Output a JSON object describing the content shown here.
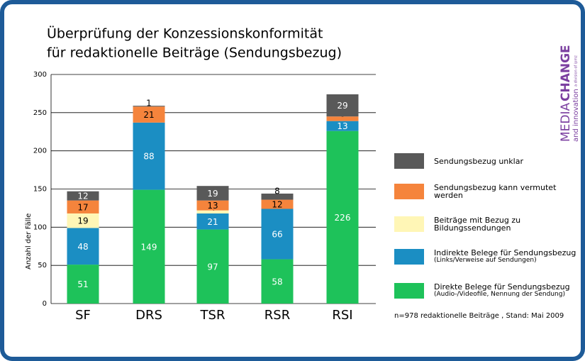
{
  "chart_data": {
    "type": "stacked_bar",
    "title": [
      "Überprüfung der Konzessionskonformität",
      "für redaktionelle Beiträge (Sendungsbezug)"
    ],
    "y_label": "Anzahl der Fälle",
    "categories": [
      "SF",
      "DRS",
      "TSR",
      "RSR",
      "RSI"
    ],
    "series": [
      {
        "name": "Direkte Belege für Sendungsbezug",
        "note": "(Audio-/Videofile, Nennung der Sendung)",
        "color": "#1ec25a",
        "values": [
          51,
          149,
          97,
          58,
          226
        ]
      },
      {
        "name": "Indirekte Belege für Sendungsbezug",
        "note": "(Links/Verweise auf Sendungen)",
        "color": "#1b8ec3",
        "values": [
          48,
          88,
          21,
          66,
          13
        ]
      },
      {
        "name": "Beiträge mit Bezug zu Bildungssendungen",
        "color": "#fff6b6",
        "values": [
          19,
          null,
          4,
          null,
          null
        ]
      },
      {
        "name": "Sendungsbezug kann vermutet werden",
        "color": "#f5843c",
        "values": [
          17,
          21,
          13,
          12,
          6
        ]
      },
      {
        "name": "Sendungsbezug unklar",
        "color": "#595959",
        "values": [
          12,
          1,
          19,
          8,
          29
        ]
      }
    ],
    "ylim": [
      0,
      300
    ],
    "yticks": [
      0,
      50,
      100,
      150,
      200,
      250,
      300
    ],
    "grid": true,
    "footnote": "n=978 redaktionelle Beiträge , Stand: Mai 2009",
    "logo": {
      "light": "MEDIA",
      "bold": "CHANGE",
      "sub": "and innovation",
      "division": "a division of ipmz"
    }
  }
}
